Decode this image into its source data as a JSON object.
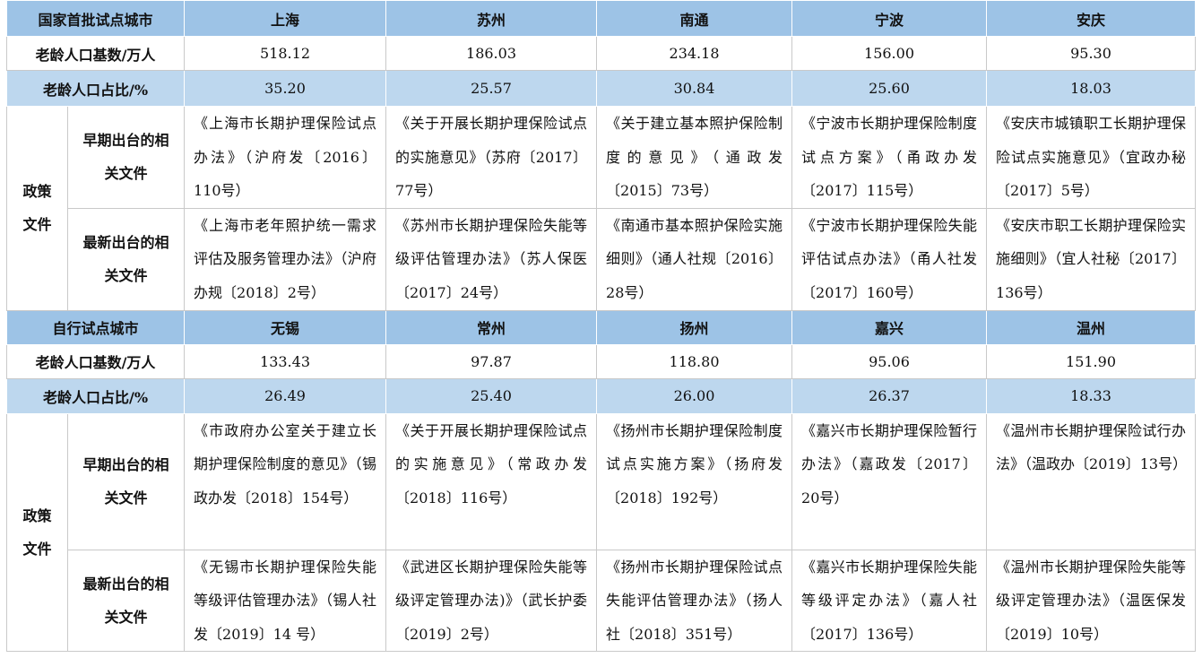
{
  "sections": [
    {
      "header_label": "国家首批试点城市",
      "cities": [
        "上海",
        "苏州",
        "南通",
        "宁波",
        "安庆"
      ],
      "base_label": "老龄人口基数/万人",
      "base_values": [
        "518.12",
        "186.03",
        "234.18",
        "156.00",
        "95.30"
      ],
      "ratio_label": "老龄人口占比/%",
      "ratio_values": [
        "35.20",
        "25.57",
        "30.84",
        "25.60",
        "18.03"
      ],
      "policy_label": "政策文件",
      "early_label": "早期出台的相关文件",
      "latest_label": "最新出台的相关文件",
      "early_docs": [
        "《上海市长期护理保险试点办法》（沪府发〔2016〕110号）",
        "《关于开展长期护理保险试点的实施意见》（苏府〔2017〕77号）",
        "《关于建立基本照护保险制度的意见》（通政发〔2015〕73号）",
        "《宁波市长期护理保险制度试点方案》（甬政办发〔2017〕115号）",
        "《安庆市城镇职工长期护理保险试点实施意见》（宜政办秘〔2017〕5号）"
      ],
      "latest_docs": [
        "《上海市老年照护统一需求评估及服务管理办法》（沪府办规〔2018〕2号）",
        "《苏州市长期护理保险失能等级评估管理办法》（苏人保医〔2017〕24号）",
        "《南通市基本照护保险实施细则》（通人社规〔2016〕28号）",
        "《宁波市长期护理保险失能评估试点办法》（甬人社发〔2017〕160号）",
        "《安庆市职工长期护理保险实施细则》（宜人社秘〔2017〕136号）"
      ]
    },
    {
      "header_label": "自行试点城市",
      "cities": [
        "无锡",
        "常州",
        "扬州",
        "嘉兴",
        "温州"
      ],
      "base_label": "老龄人口基数/万人",
      "base_values": [
        "133.43",
        "97.87",
        "118.80",
        "95.06",
        "151.90"
      ],
      "ratio_label": "老龄人口占比/%",
      "ratio_values": [
        "26.49",
        "25.40",
        "26.00",
        "26.37",
        "18.33"
      ],
      "policy_label": "政策文件",
      "early_label": "早期出台的相关文件",
      "latest_label": "最新出台的相关文件",
      "early_docs": [
        "《市政府办公室关于建立长期护理保险制度的意见》（锡政办发〔2018〕154号）",
        "《关于开展长期护理保险试点的实施意见》（常政办发〔2018〕116号）",
        "《扬州市长期护理保险制度试点实施方案》（扬府发〔2018〕192号）",
        "《嘉兴市长期护理保险暂行办法》（嘉政发〔2017〕20号）",
        "《温州市长期护理保险试行办法》（温政办〔2019〕13号）"
      ],
      "latest_docs": [
        "《无锡市长期护理保险失能等级评估管理办法》（锡人社发〔2019〕14 号）",
        "《武进区长期护理保险失能等级评定管理办法)》（武长护委〔2019〕2号）",
        "《扬州市长期护理保险试点失能评估管理办法》（扬人社〔2018〕351号）",
        "《嘉兴市长期护理保险失能等级评定办法》（嘉人社〔2017〕136号）",
        "《温州市长期护理保险失能等级评定管理办法》（温医保发〔2019〕10号）"
      ]
    }
  ]
}
